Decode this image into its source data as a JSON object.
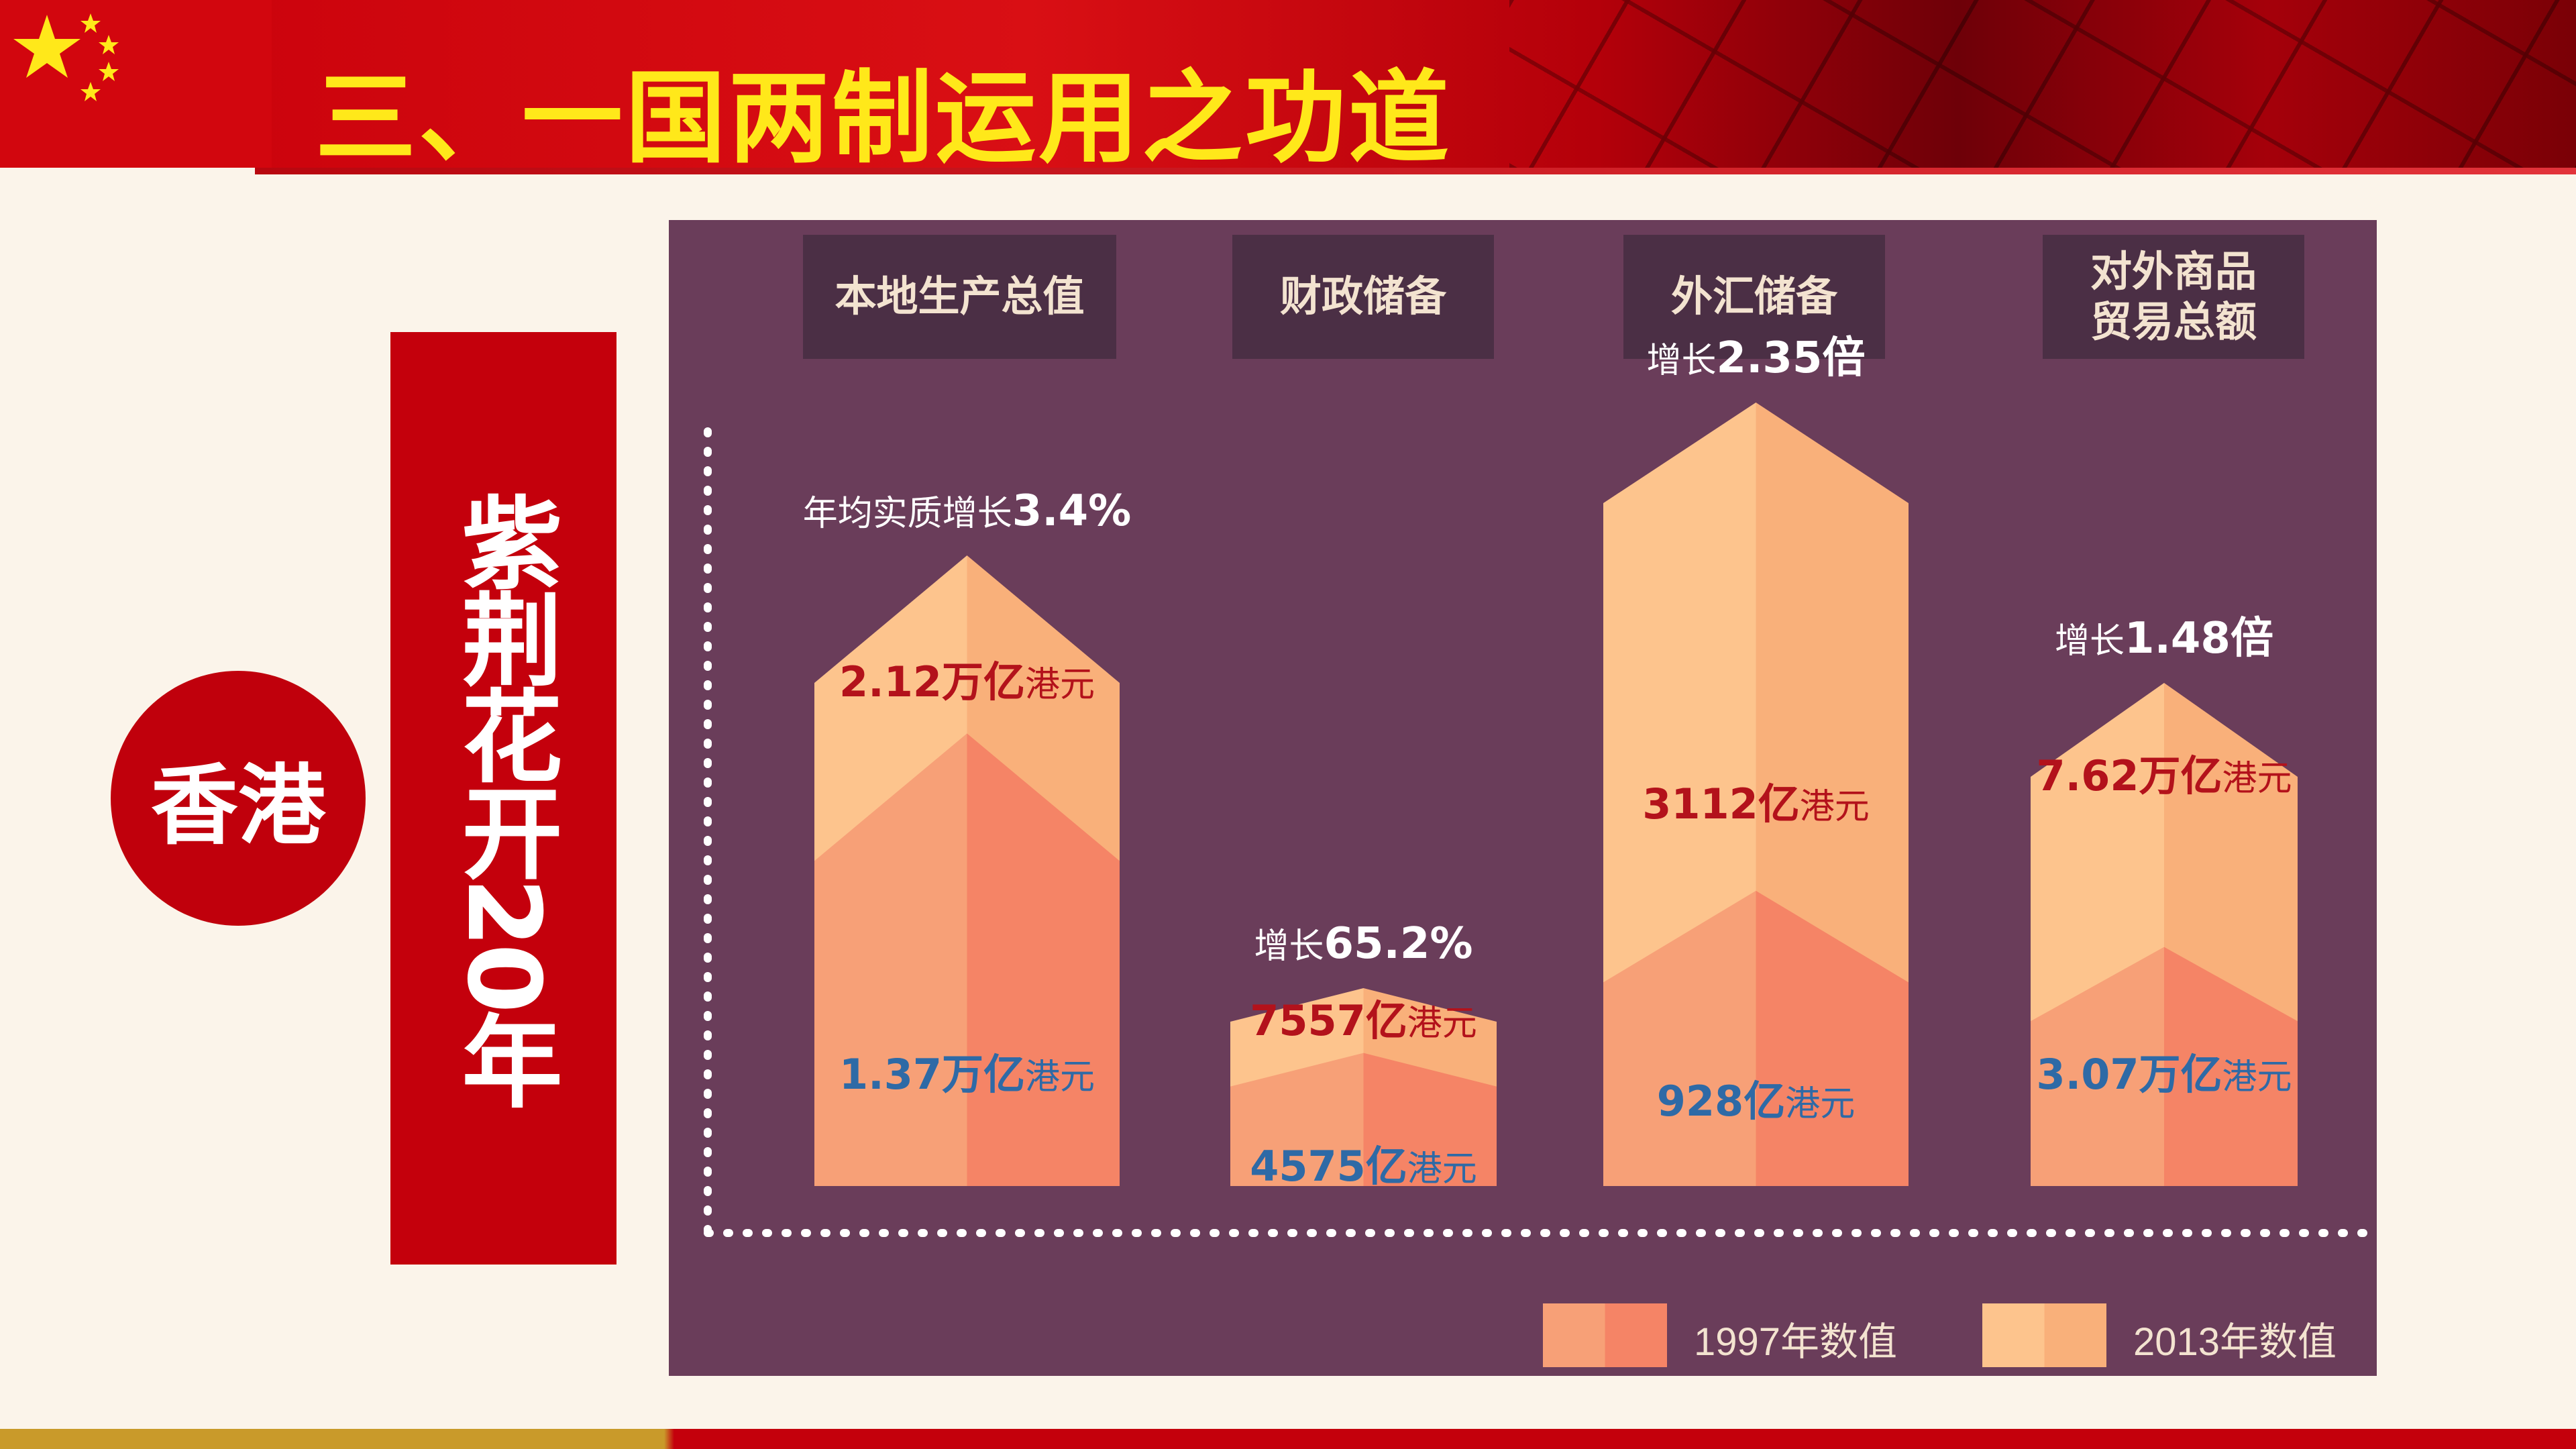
{
  "header": {
    "title": "三、一国两制运用之功道"
  },
  "side": {
    "circle_label": "香港",
    "vertical_label": "紫荆花开20年"
  },
  "colors": {
    "header_red": "#c8000a",
    "title_yellow": "#ffe81a",
    "panel_purple": "#6a3d5a",
    "category_box": "#4b2f45",
    "bar_1997": "#f7906a",
    "bar_2013": "#fbbf86",
    "label_red": "#b3121b",
    "label_blue": "#2e6aa6",
    "growth_text": "#ffffff"
  },
  "chart_data": {
    "type": "bar",
    "categories": [
      "本地生产总值",
      "财政储备",
      "外汇储备",
      "对外商品贸易总额"
    ],
    "categories_display": [
      "本地生产总值",
      "财政储备",
      "外汇储备",
      "对外商品\n贸易总额"
    ],
    "series": [
      {
        "name": "1997年数值",
        "values": [
          1.37,
          0.4575,
          0.0928,
          3.07
        ],
        "labels": [
          {
            "num": "1.37万亿",
            "unit": "港元"
          },
          {
            "num": "4575亿",
            "unit": "港元"
          },
          {
            "num": "928亿",
            "unit": "港元"
          },
          {
            "num": "3.07万亿",
            "unit": "港元"
          }
        ]
      },
      {
        "name": "2013年数值",
        "values": [
          2.12,
          0.7557,
          0.3112,
          7.62
        ],
        "labels": [
          {
            "num": "2.12万亿",
            "unit": "港元"
          },
          {
            "num": "7557亿",
            "unit": "港元"
          },
          {
            "num": "3112亿",
            "unit": "港元"
          },
          {
            "num": "7.62万亿",
            "unit": "港元"
          }
        ]
      }
    ],
    "growth": [
      {
        "prefix": "年均实质增长",
        "value": "3.4%"
      },
      {
        "prefix": "增长",
        "value": "65.2%"
      },
      {
        "prefix": "增长",
        "value": "2.35倍"
      },
      {
        "prefix": "增长",
        "value": "1.48倍"
      }
    ],
    "legend": [
      "1997年数值",
      "2013年数值"
    ],
    "legend_position": "bottom-right",
    "grid": false
  }
}
